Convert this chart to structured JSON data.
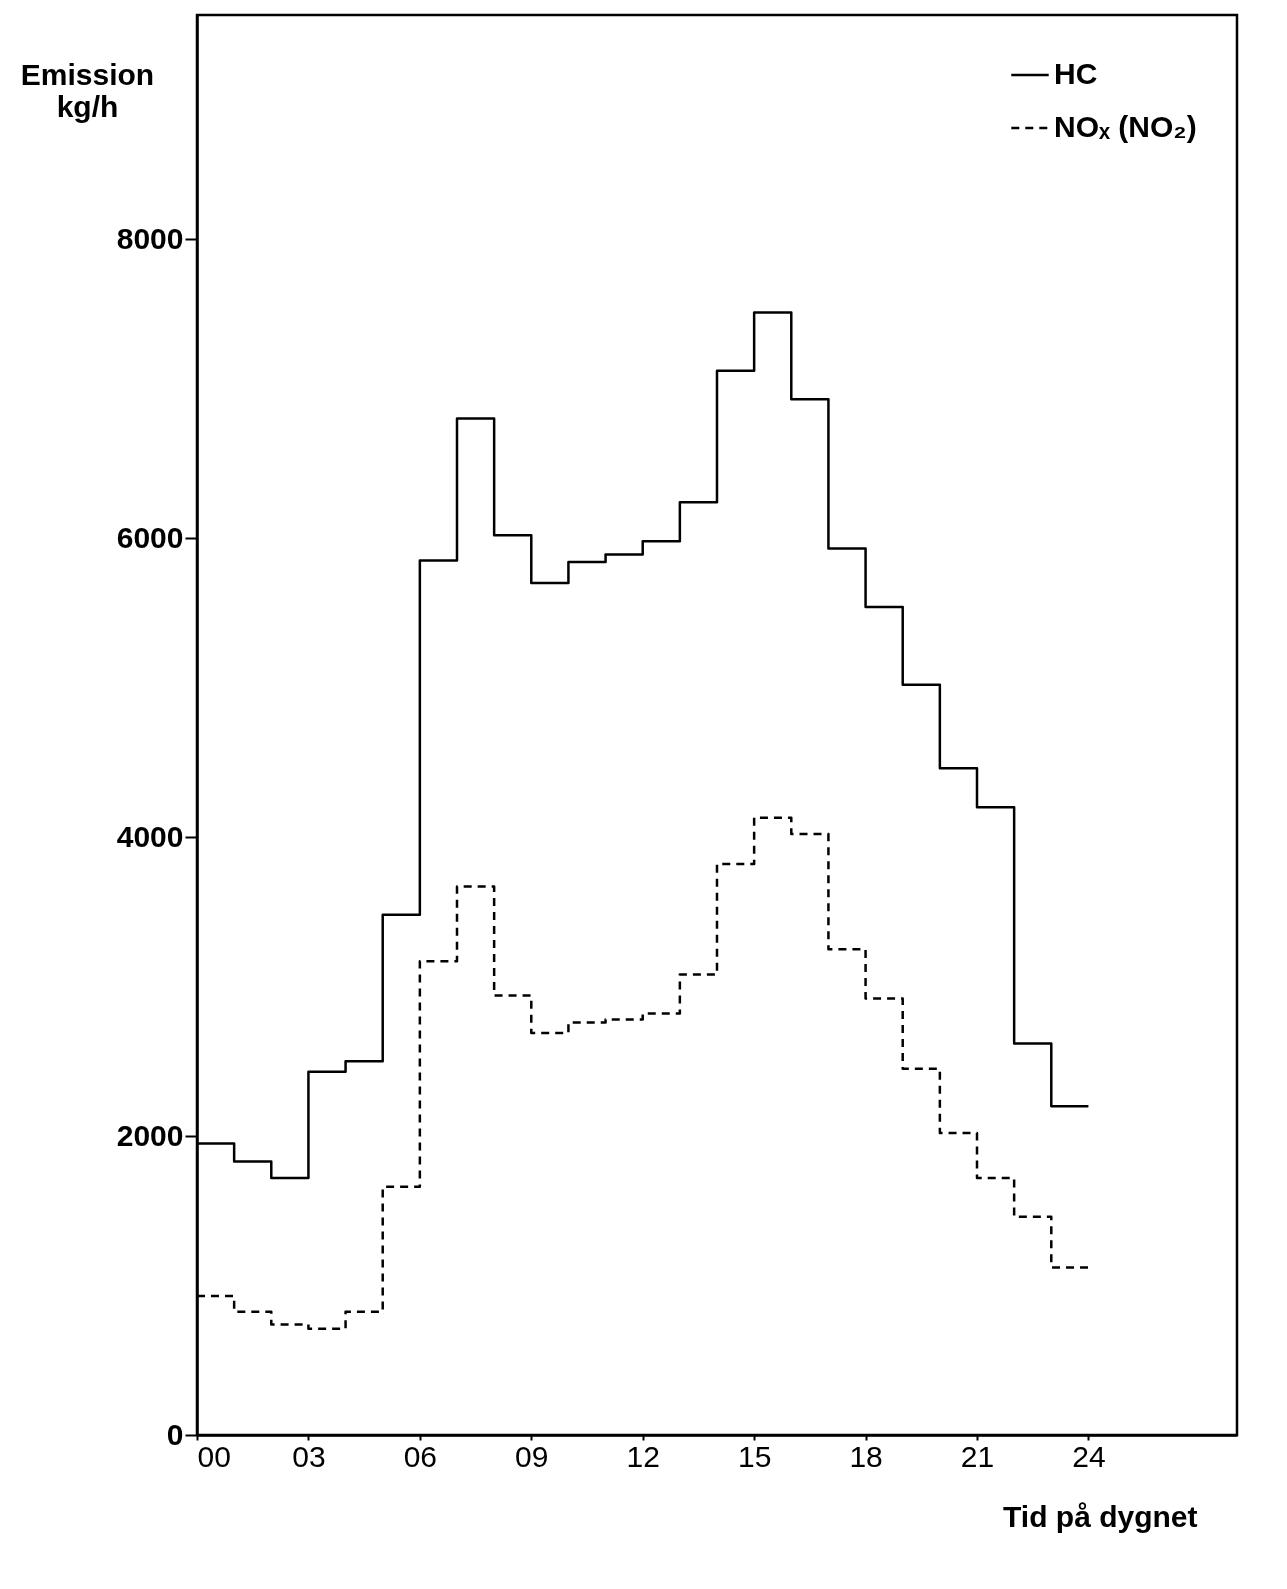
{
  "chart_data": {
    "type": "step",
    "xlabel": "Tid på dygnet",
    "ylabel": "Emission\nkg/h",
    "x": [
      0,
      1,
      2,
      3,
      4,
      5,
      6,
      7,
      8,
      9,
      10,
      11,
      12,
      13,
      14,
      15,
      16,
      17,
      18,
      19,
      20,
      21,
      22,
      23,
      24
    ],
    "xlim": [
      0,
      28
    ],
    "ylim": [
      0,
      9500
    ],
    "xticks": [
      {
        "value": 0,
        "label": "00"
      },
      {
        "value": 3,
        "label": "03"
      },
      {
        "value": 6,
        "label": "06"
      },
      {
        "value": 9,
        "label": "09"
      },
      12,
      15,
      18,
      21,
      24
    ],
    "yticks": [
      0,
      2000,
      4000,
      6000,
      8000
    ],
    "grid": false,
    "legend": "top right",
    "series": [
      {
        "name": "HC",
        "color": "#000000",
        "line_style": "solid",
        "values": [
          1950,
          1830,
          1720,
          2430,
          2500,
          3480,
          5850,
          6800,
          6020,
          5700,
          5840,
          5890,
          5980,
          6240,
          7120,
          7510,
          6930,
          5930,
          5540,
          5020,
          4460,
          4200,
          2620,
          2200,
          2200
        ]
      },
      {
        "name": "NOₓ (NO₂)",
        "color": "#000000",
        "line_style": "dashed",
        "values": [
          930,
          825,
          740,
          710,
          825,
          1660,
          3170,
          3670,
          2940,
          2690,
          2760,
          2780,
          2820,
          3080,
          3820,
          4130,
          4020,
          3250,
          2920,
          2450,
          2020,
          1720,
          1460,
          1120,
          1120
        ]
      }
    ]
  }
}
